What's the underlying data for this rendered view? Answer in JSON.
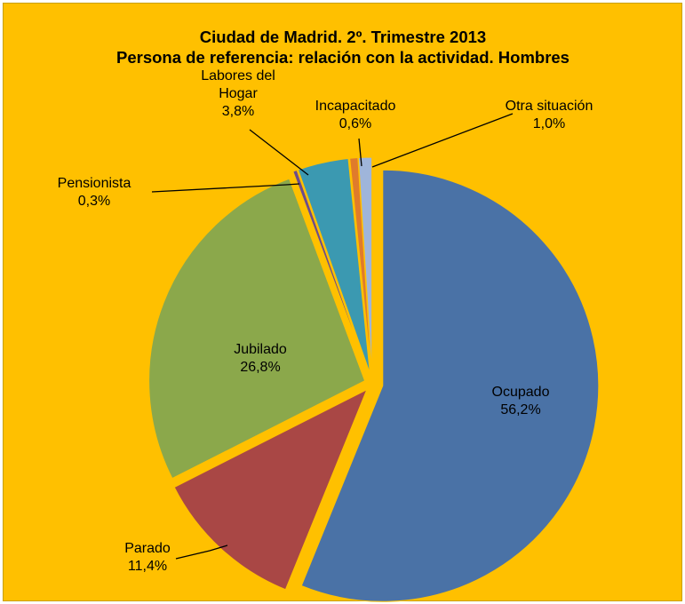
{
  "colors": {
    "background": "#ffc000",
    "Ocupado": "#4a72a6",
    "Parado": "#a94745",
    "Jubilado": "#8ba84b",
    "Pensionista": "#6c4c8c",
    "Labores del Hogar": "#3b99b1",
    "Incapacitado": "#e07b2b",
    "Otra situación": "#9fb5da"
  },
  "chart_data": {
    "type": "pie",
    "title": "Ciudad de Madrid. 2º. Trimestre 2013",
    "subtitle": "Persona de referencia: relación con la actividad. Hombres",
    "slices": [
      {
        "label": "Ocupado",
        "value": 56.2,
        "value_label": "56,2%"
      },
      {
        "label": "Parado",
        "value": 11.4,
        "value_label": "11,4%"
      },
      {
        "label": "Jubilado",
        "value": 26.8,
        "value_label": "26,8%"
      },
      {
        "label": "Pensionista",
        "value": 0.3,
        "value_label": "0,3%"
      },
      {
        "label": "Labores del Hogar",
        "value": 3.8,
        "value_label": "3,8%"
      },
      {
        "label": "Incapacitado",
        "value": 0.6,
        "value_label": "0,6%"
      },
      {
        "label": "Otra situación",
        "value": 1.0,
        "value_label": "1,0%"
      }
    ],
    "exploded": true
  }
}
